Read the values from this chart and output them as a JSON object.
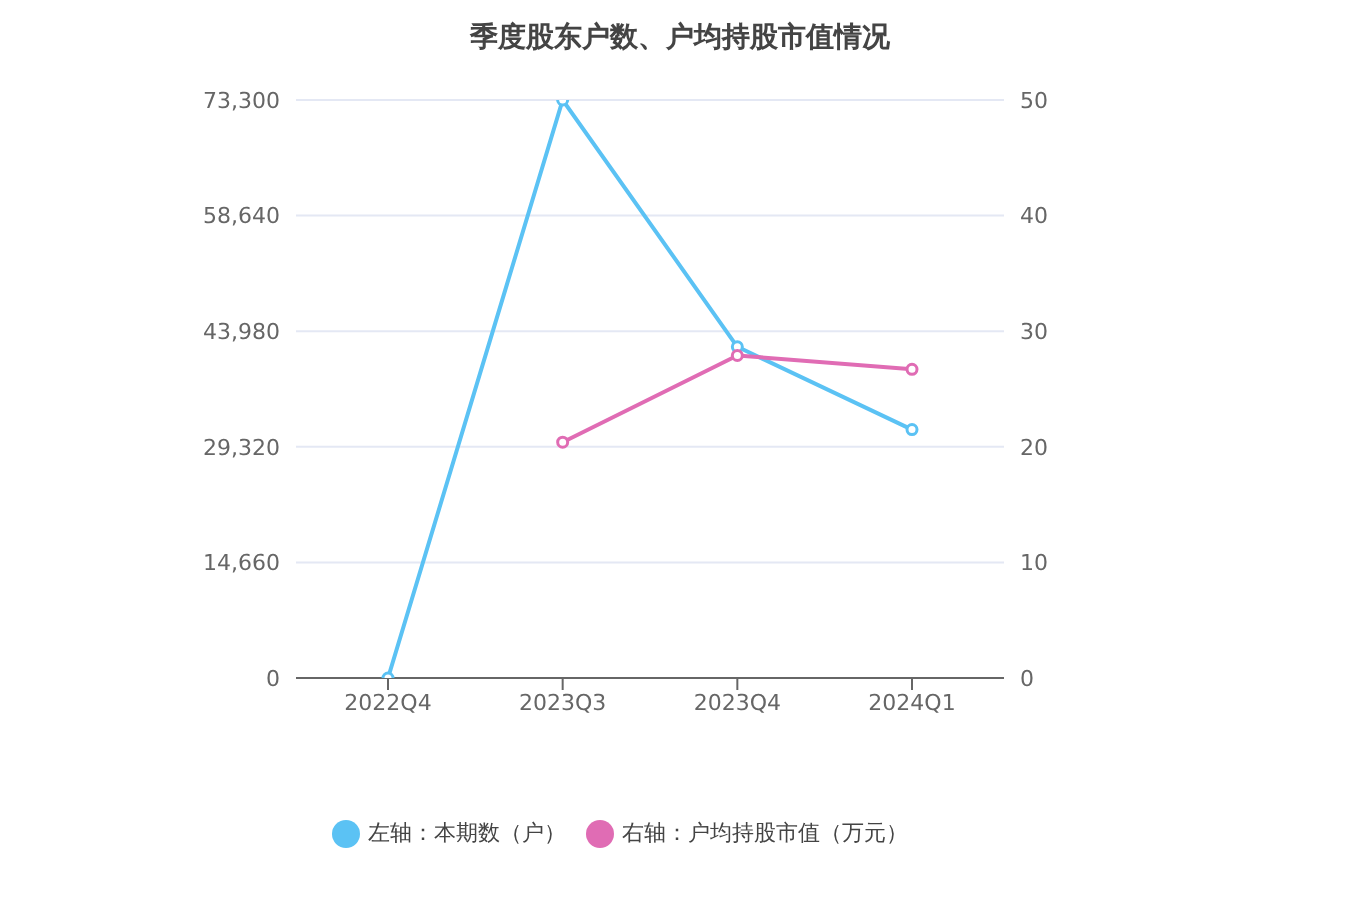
{
  "chart_data": {
    "type": "line",
    "title": "季度股东户数、户均持股市值情况",
    "categories": [
      "2022Q4",
      "2023Q3",
      "2023Q4",
      "2024Q1"
    ],
    "series": [
      {
        "name": "左轴：本期数（户）",
        "color": "#5bc2f4",
        "values": [
          0,
          73300,
          42000,
          31500
        ]
      },
      {
        "name": "右轴：户均持股市值（万元）",
        "color": "#e06cb4",
        "values": [
          null,
          20.4,
          27.9,
          26.7
        ],
        "axis": "y2"
      }
    ],
    "ylim": [
      0,
      73300
    ],
    "yticks": [
      0,
      {
        "value": 14660,
        "label": "14,660"
      },
      {
        "value": 29320,
        "label": "29,320"
      },
      {
        "value": 43980,
        "label": "43,980"
      },
      {
        "value": 58640,
        "label": "58,640"
      },
      {
        "value": 73300,
        "label": "73,300"
      }
    ],
    "y2lim": [
      0,
      50
    ],
    "y2ticks": [
      0,
      10,
      20,
      30,
      40,
      50
    ],
    "grid": "y",
    "legend": "bottom",
    "marker": "circle",
    "line_style": "solid"
  }
}
